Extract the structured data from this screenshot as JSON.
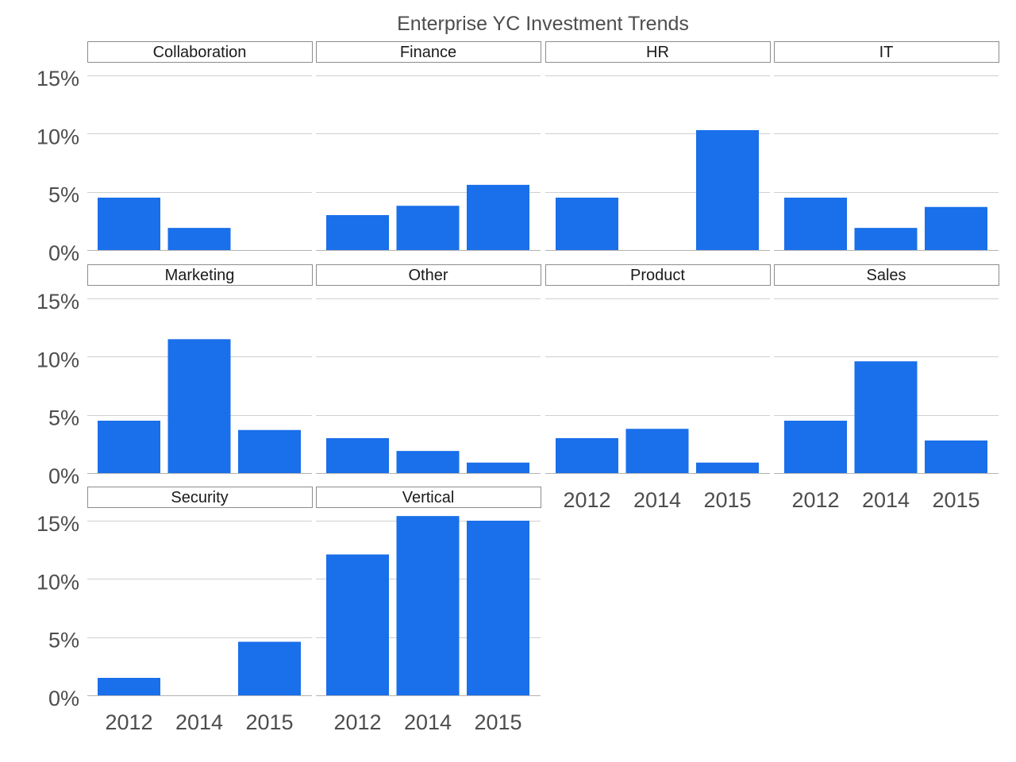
{
  "chart_data": {
    "type": "bar",
    "title": "Enterprise YC Investment Trends",
    "categories": [
      "2012",
      "2014",
      "2015"
    ],
    "ylim": [
      0,
      15
    ],
    "yticks": [
      0,
      5,
      10,
      15
    ],
    "ytick_labels": [
      "0%",
      "5%",
      "10%",
      "15%"
    ],
    "grid": true,
    "bar_color": "#1a6fea",
    "panels": [
      {
        "name": "Collaboration",
        "values": [
          4.5,
          1.9,
          0
        ]
      },
      {
        "name": "Finance",
        "values": [
          3.0,
          3.8,
          5.6
        ]
      },
      {
        "name": "HR",
        "values": [
          4.5,
          0,
          10.3
        ]
      },
      {
        "name": "IT",
        "values": [
          4.5,
          1.9,
          3.7
        ]
      },
      {
        "name": "Marketing",
        "values": [
          4.5,
          11.5,
          3.7
        ]
      },
      {
        "name": "Other",
        "values": [
          3.0,
          1.9,
          0.9
        ]
      },
      {
        "name": "Product",
        "values": [
          3.0,
          3.8,
          0.9
        ]
      },
      {
        "name": "Sales",
        "values": [
          4.5,
          9.6,
          2.8
        ]
      },
      {
        "name": "Security",
        "values": [
          1.5,
          0,
          4.6
        ]
      },
      {
        "name": "Vertical",
        "values": [
          12.1,
          15.4,
          15.0
        ]
      }
    ]
  }
}
